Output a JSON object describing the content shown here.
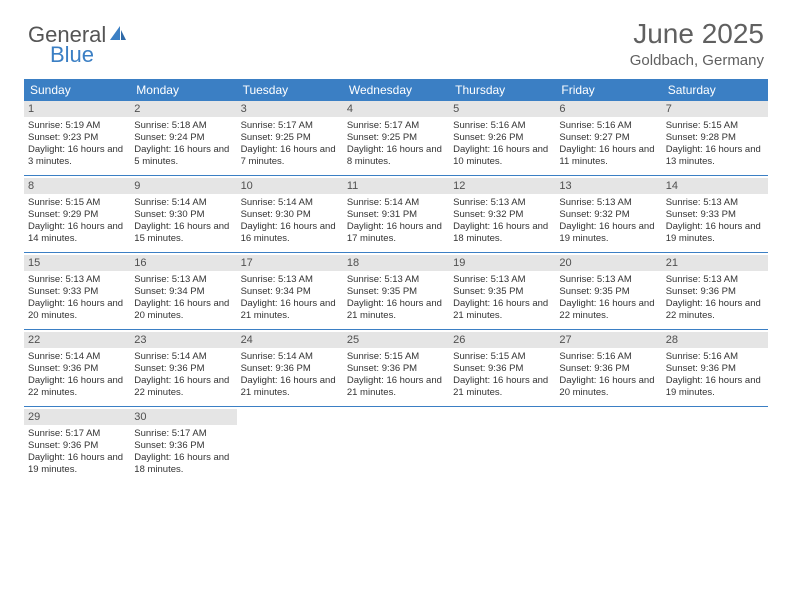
{
  "logo": {
    "text1": "General",
    "text2": "Blue"
  },
  "header": {
    "title": "June 2025",
    "location": "Goldbach, Germany"
  },
  "colors": {
    "primary": "#3b7fc4",
    "daybg": "#e5e5e5",
    "text": "#333333",
    "header_text": "#606060"
  },
  "day_names": [
    "Sunday",
    "Monday",
    "Tuesday",
    "Wednesday",
    "Thursday",
    "Friday",
    "Saturday"
  ],
  "days": [
    {
      "n": "1",
      "sr": "5:19 AM",
      "ss": "9:23 PM",
      "dl": "16 hours and 3 minutes."
    },
    {
      "n": "2",
      "sr": "5:18 AM",
      "ss": "9:24 PM",
      "dl": "16 hours and 5 minutes."
    },
    {
      "n": "3",
      "sr": "5:17 AM",
      "ss": "9:25 PM",
      "dl": "16 hours and 7 minutes."
    },
    {
      "n": "4",
      "sr": "5:17 AM",
      "ss": "9:25 PM",
      "dl": "16 hours and 8 minutes."
    },
    {
      "n": "5",
      "sr": "5:16 AM",
      "ss": "9:26 PM",
      "dl": "16 hours and 10 minutes."
    },
    {
      "n": "6",
      "sr": "5:16 AM",
      "ss": "9:27 PM",
      "dl": "16 hours and 11 minutes."
    },
    {
      "n": "7",
      "sr": "5:15 AM",
      "ss": "9:28 PM",
      "dl": "16 hours and 13 minutes."
    },
    {
      "n": "8",
      "sr": "5:15 AM",
      "ss": "9:29 PM",
      "dl": "16 hours and 14 minutes."
    },
    {
      "n": "9",
      "sr": "5:14 AM",
      "ss": "9:30 PM",
      "dl": "16 hours and 15 minutes."
    },
    {
      "n": "10",
      "sr": "5:14 AM",
      "ss": "9:30 PM",
      "dl": "16 hours and 16 minutes."
    },
    {
      "n": "11",
      "sr": "5:14 AM",
      "ss": "9:31 PM",
      "dl": "16 hours and 17 minutes."
    },
    {
      "n": "12",
      "sr": "5:13 AM",
      "ss": "9:32 PM",
      "dl": "16 hours and 18 minutes."
    },
    {
      "n": "13",
      "sr": "5:13 AM",
      "ss": "9:32 PM",
      "dl": "16 hours and 19 minutes."
    },
    {
      "n": "14",
      "sr": "5:13 AM",
      "ss": "9:33 PM",
      "dl": "16 hours and 19 minutes."
    },
    {
      "n": "15",
      "sr": "5:13 AM",
      "ss": "9:33 PM",
      "dl": "16 hours and 20 minutes."
    },
    {
      "n": "16",
      "sr": "5:13 AM",
      "ss": "9:34 PM",
      "dl": "16 hours and 20 minutes."
    },
    {
      "n": "17",
      "sr": "5:13 AM",
      "ss": "9:34 PM",
      "dl": "16 hours and 21 minutes."
    },
    {
      "n": "18",
      "sr": "5:13 AM",
      "ss": "9:35 PM",
      "dl": "16 hours and 21 minutes."
    },
    {
      "n": "19",
      "sr": "5:13 AM",
      "ss": "9:35 PM",
      "dl": "16 hours and 21 minutes."
    },
    {
      "n": "20",
      "sr": "5:13 AM",
      "ss": "9:35 PM",
      "dl": "16 hours and 22 minutes."
    },
    {
      "n": "21",
      "sr": "5:13 AM",
      "ss": "9:36 PM",
      "dl": "16 hours and 22 minutes."
    },
    {
      "n": "22",
      "sr": "5:14 AM",
      "ss": "9:36 PM",
      "dl": "16 hours and 22 minutes."
    },
    {
      "n": "23",
      "sr": "5:14 AM",
      "ss": "9:36 PM",
      "dl": "16 hours and 22 minutes."
    },
    {
      "n": "24",
      "sr": "5:14 AM",
      "ss": "9:36 PM",
      "dl": "16 hours and 21 minutes."
    },
    {
      "n": "25",
      "sr": "5:15 AM",
      "ss": "9:36 PM",
      "dl": "16 hours and 21 minutes."
    },
    {
      "n": "26",
      "sr": "5:15 AM",
      "ss": "9:36 PM",
      "dl": "16 hours and 21 minutes."
    },
    {
      "n": "27",
      "sr": "5:16 AM",
      "ss": "9:36 PM",
      "dl": "16 hours and 20 minutes."
    },
    {
      "n": "28",
      "sr": "5:16 AM",
      "ss": "9:36 PM",
      "dl": "16 hours and 19 minutes."
    },
    {
      "n": "29",
      "sr": "5:17 AM",
      "ss": "9:36 PM",
      "dl": "16 hours and 19 minutes."
    },
    {
      "n": "30",
      "sr": "5:17 AM",
      "ss": "9:36 PM",
      "dl": "16 hours and 18 minutes."
    }
  ],
  "labels": {
    "sunrise": "Sunrise:",
    "sunset": "Sunset:",
    "daylight": "Daylight:"
  },
  "layout": {
    "start_weekday": 0,
    "weeks": 5,
    "cols": 7
  }
}
